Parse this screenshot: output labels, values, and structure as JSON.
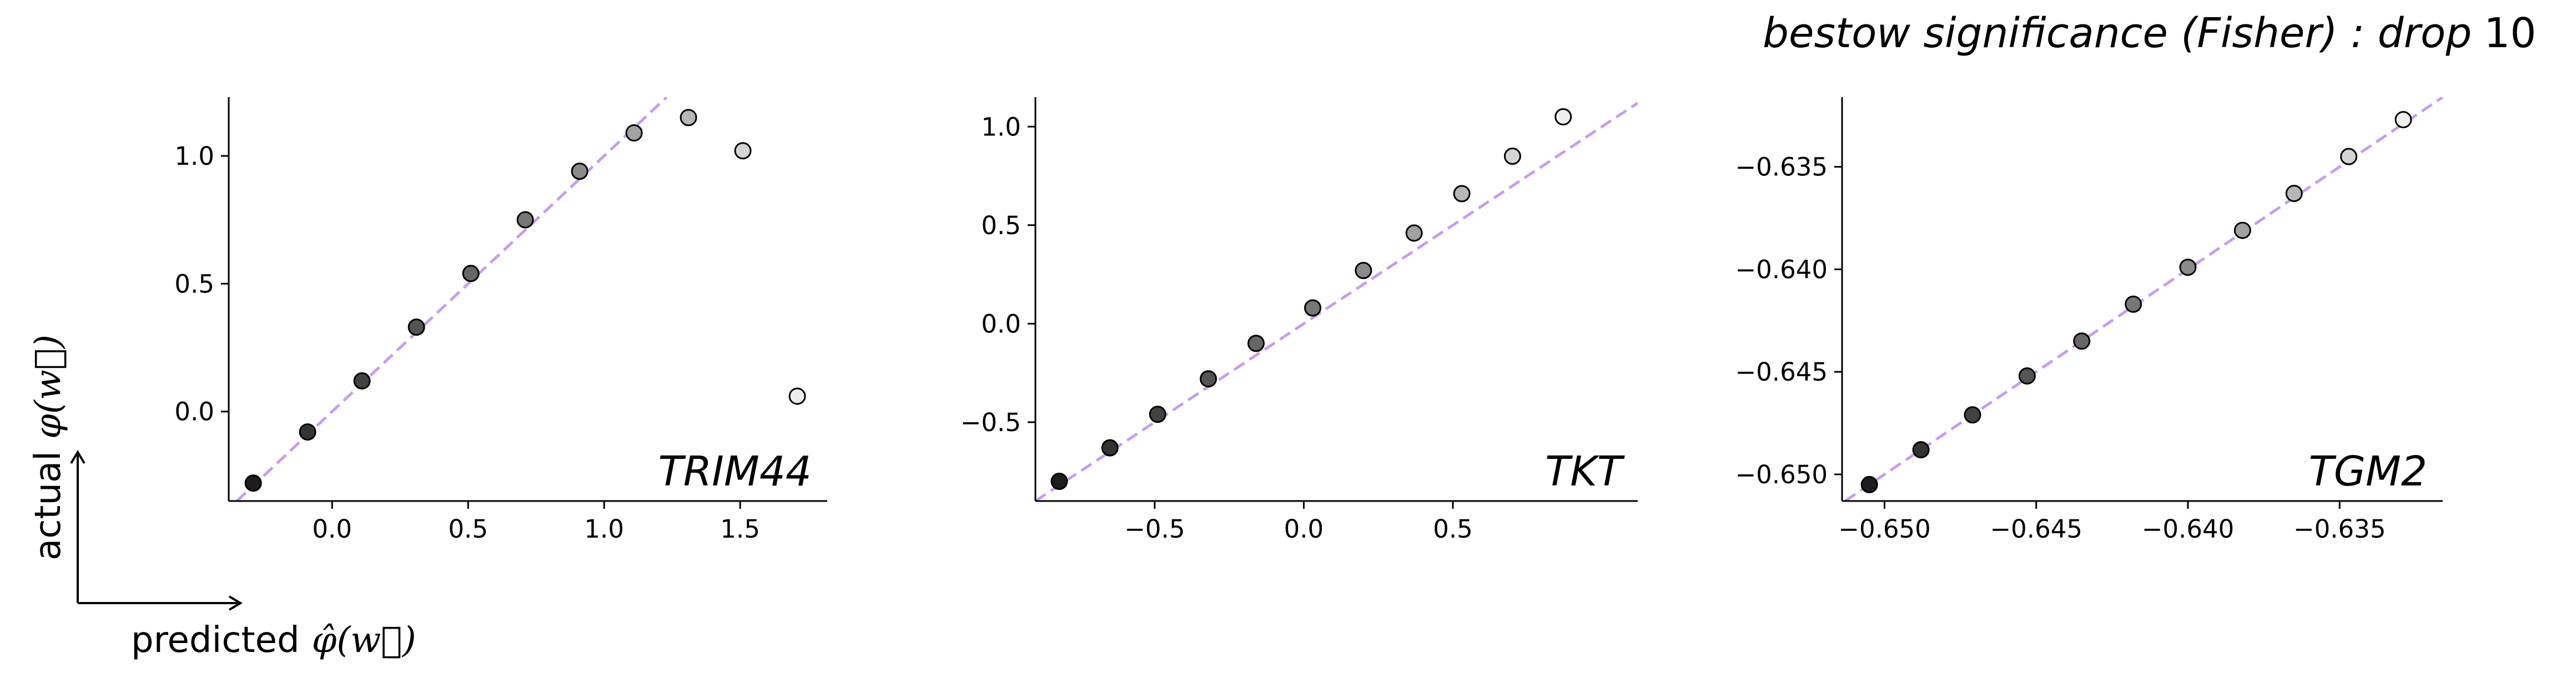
{
  "figure": {
    "title_text": "bestow significance (Fisher) : drop",
    "title_number": "10",
    "x_caption_word": "predicted",
    "x_caption_math": "φ̂(w⃗)",
    "y_caption_word": "actual",
    "y_caption_math": "φ(w⃗)"
  },
  "chart_data": [
    {
      "type": "scatter",
      "label": "TRIM44",
      "xlim": [
        -0.38,
        1.82
      ],
      "ylim": [
        -0.35,
        1.23
      ],
      "xticks": [
        "0.0",
        "0.5",
        "1.0",
        "1.5"
      ],
      "xtick_values": [
        0.0,
        0.5,
        1.0,
        1.5
      ],
      "yticks": [
        "0.0",
        "0.5",
        "1.0"
      ],
      "ytick_values": [
        0.0,
        0.5,
        1.0
      ],
      "reference_line": "y = x",
      "points": [
        {
          "x": -0.29,
          "y": -0.28,
          "shade": 0.05
        },
        {
          "x": -0.09,
          "y": -0.08,
          "shade": 0.15
        },
        {
          "x": 0.11,
          "y": 0.12,
          "shade": 0.22
        },
        {
          "x": 0.31,
          "y": 0.33,
          "shade": 0.3
        },
        {
          "x": 0.51,
          "y": 0.54,
          "shade": 0.38
        },
        {
          "x": 0.71,
          "y": 0.75,
          "shade": 0.46
        },
        {
          "x": 0.91,
          "y": 0.94,
          "shade": 0.55
        },
        {
          "x": 1.11,
          "y": 1.09,
          "shade": 0.65
        },
        {
          "x": 1.31,
          "y": 1.15,
          "shade": 0.75
        },
        {
          "x": 1.51,
          "y": 1.02,
          "shade": 0.88
        },
        {
          "x": 1.71,
          "y": 0.06,
          "shade": 1.0
        }
      ]
    },
    {
      "type": "scatter",
      "label": "TKT",
      "xlim": [
        -0.9,
        1.12
      ],
      "ylim": [
        -0.9,
        1.15
      ],
      "xticks": [
        "−0.5",
        "0.0",
        "0.5"
      ],
      "xtick_values": [
        -0.5,
        0.0,
        0.5
      ],
      "yticks": [
        "−0.5",
        "0.0",
        "0.5",
        "1.0"
      ],
      "ytick_values": [
        -0.5,
        0.0,
        0.5,
        1.0
      ],
      "reference_line": "y = x",
      "points": [
        {
          "x": -0.82,
          "y": -0.8,
          "shade": 0.05
        },
        {
          "x": -0.65,
          "y": -0.63,
          "shade": 0.15
        },
        {
          "x": -0.49,
          "y": -0.46,
          "shade": 0.22
        },
        {
          "x": -0.32,
          "y": -0.28,
          "shade": 0.3
        },
        {
          "x": -0.16,
          "y": -0.1,
          "shade": 0.38
        },
        {
          "x": 0.03,
          "y": 0.08,
          "shade": 0.46
        },
        {
          "x": 0.2,
          "y": 0.27,
          "shade": 0.55
        },
        {
          "x": 0.37,
          "y": 0.46,
          "shade": 0.65
        },
        {
          "x": 0.53,
          "y": 0.66,
          "shade": 0.75
        },
        {
          "x": 0.7,
          "y": 0.85,
          "shade": 0.88
        },
        {
          "x": 0.87,
          "y": 1.05,
          "shade": 1.0
        }
      ]
    },
    {
      "type": "scatter",
      "label": "TGM2",
      "xlim": [
        -0.6514,
        -0.6316
      ],
      "ylim": [
        -0.6513,
        -0.6316
      ],
      "xticks": [
        "−0.650",
        "−0.645",
        "−0.640",
        "−0.635"
      ],
      "xtick_values": [
        -0.65,
        -0.645,
        -0.64,
        -0.635
      ],
      "yticks": [
        "−0.650",
        "−0.645",
        "−0.640",
        "−0.635"
      ],
      "ytick_values": [
        -0.65,
        -0.645,
        -0.64,
        -0.635
      ],
      "reference_line": "y = x",
      "points": [
        {
          "x": -0.6505,
          "y": -0.6505,
          "shade": 0.05
        },
        {
          "x": -0.6488,
          "y": -0.6488,
          "shade": 0.15
        },
        {
          "x": -0.6471,
          "y": -0.6471,
          "shade": 0.22
        },
        {
          "x": -0.6453,
          "y": -0.6452,
          "shade": 0.3
        },
        {
          "x": -0.6435,
          "y": -0.6435,
          "shade": 0.38
        },
        {
          "x": -0.6418,
          "y": -0.6417,
          "shade": 0.46
        },
        {
          "x": -0.64,
          "y": -0.6399,
          "shade": 0.55
        },
        {
          "x": -0.6382,
          "y": -0.6381,
          "shade": 0.65
        },
        {
          "x": -0.6365,
          "y": -0.6363,
          "shade": 0.75
        },
        {
          "x": -0.6347,
          "y": -0.6345,
          "shade": 0.88
        },
        {
          "x": -0.6329,
          "y": -0.6327,
          "shade": 1.0
        }
      ]
    }
  ]
}
